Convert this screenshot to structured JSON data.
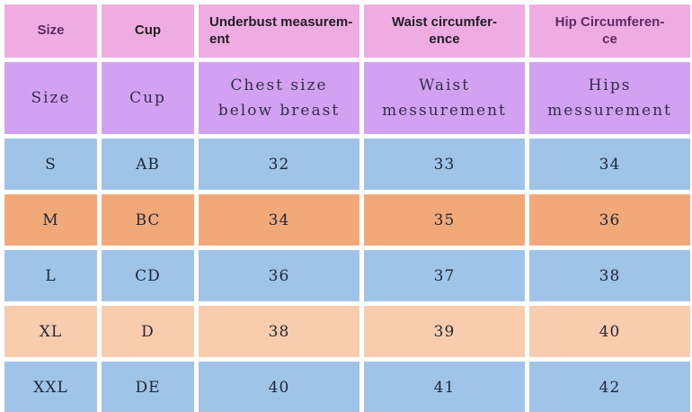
{
  "colors": {
    "page_bg": "#FFFFFF",
    "header_pink": "#EFACE2",
    "header_purple": "#D3A1F1",
    "row_blue": "#9FC4E7",
    "row_orange": "#F2A979",
    "row_peach": "#F8CCAD",
    "header_text_dark": "#221E26",
    "header_text_purple": "#5E2A66",
    "subheader_text": "#332F4A",
    "body_text": "#20283A"
  },
  "chart_data": {
    "type": "table",
    "columns": [
      "Size",
      "Cup",
      "Underbust measurement",
      "Waist circumference",
      "Hip Circumference"
    ],
    "subheader": [
      "Size",
      "Cup",
      "Chest size below breast",
      "Waist messurement",
      "Hips messurement"
    ],
    "rows": [
      [
        "S",
        "AB",
        32,
        33,
        34
      ],
      [
        "M",
        "BC",
        34,
        35,
        36
      ],
      [
        "L",
        "CD",
        36,
        37,
        38
      ],
      [
        "XL",
        "D",
        38,
        39,
        40
      ],
      [
        "XXL",
        "DE",
        40,
        41,
        42
      ]
    ]
  },
  "display": {
    "header_cells": [
      {
        "label": "Size",
        "fg": "#5E2A66"
      },
      {
        "label": "Cup",
        "fg": "#221E26"
      },
      {
        "label": "Underbust measurem-\nent",
        "fg": "#221E26"
      },
      {
        "label": "Waist circumfer-\nence",
        "fg": "#221E26"
      },
      {
        "label": "Hip Circumferen-\nce",
        "fg": "#5E2A66"
      }
    ],
    "subheader_cells": [
      "Size",
      "Cup",
      "Chest size\nbelow breast",
      "Waist\nmessurement",
      "Hips\nmessurement"
    ],
    "row_bgs": [
      "#9FC4E7",
      "#F2A979",
      "#9FC4E7",
      "#F8CCAD",
      "#9FC4E7"
    ]
  }
}
